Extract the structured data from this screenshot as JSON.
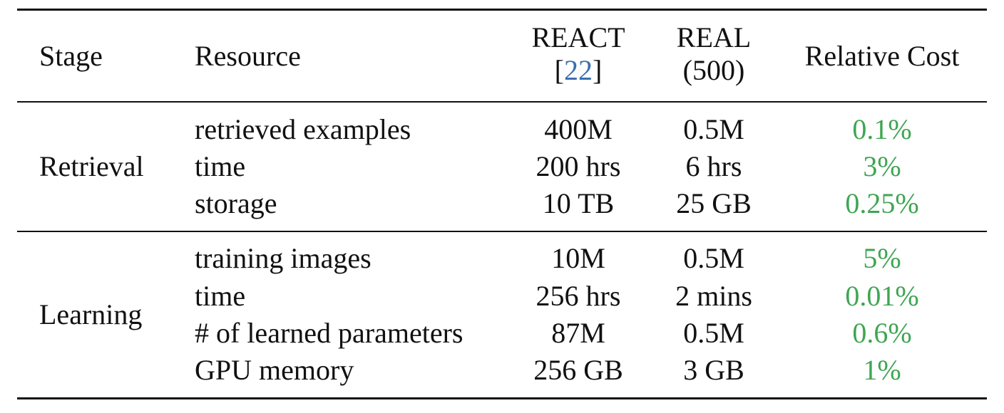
{
  "header": {
    "stage": "Stage",
    "resource": "Resource",
    "react_line1": "REACT",
    "react_cite_open": "[",
    "react_cite_num": "22",
    "react_cite_close": "]",
    "real_line1": "REAL",
    "real_line2": "(500)",
    "relative_cost": "Relative Cost"
  },
  "sections": [
    {
      "stage": "Retrieval",
      "rows": [
        {
          "resource": "retrieved examples",
          "react": "400M",
          "real": "0.5M",
          "relative": "0.1%"
        },
        {
          "resource": "time",
          "react": "200 hrs",
          "real": "6 hrs",
          "relative": "3%"
        },
        {
          "resource": "storage",
          "react": "10 TB",
          "real": "25 GB",
          "relative": "0.25%"
        }
      ]
    },
    {
      "stage": "Learning",
      "rows": [
        {
          "resource": "training images",
          "react": "10M",
          "real": "0.5M",
          "relative": "5%"
        },
        {
          "resource": "time",
          "react": "256 hrs",
          "real": "2 mins",
          "relative": "0.01%"
        },
        {
          "resource": "# of learned parameters",
          "react": "87M",
          "real": "0.5M",
          "relative": "0.6%"
        },
        {
          "resource": "GPU memory",
          "react": "256 GB",
          "real": "3 GB",
          "relative": "1%"
        }
      ]
    }
  ],
  "colors": {
    "citation": "#3a6fb0",
    "relative_cost": "#3fa553",
    "rules": "#111111"
  }
}
